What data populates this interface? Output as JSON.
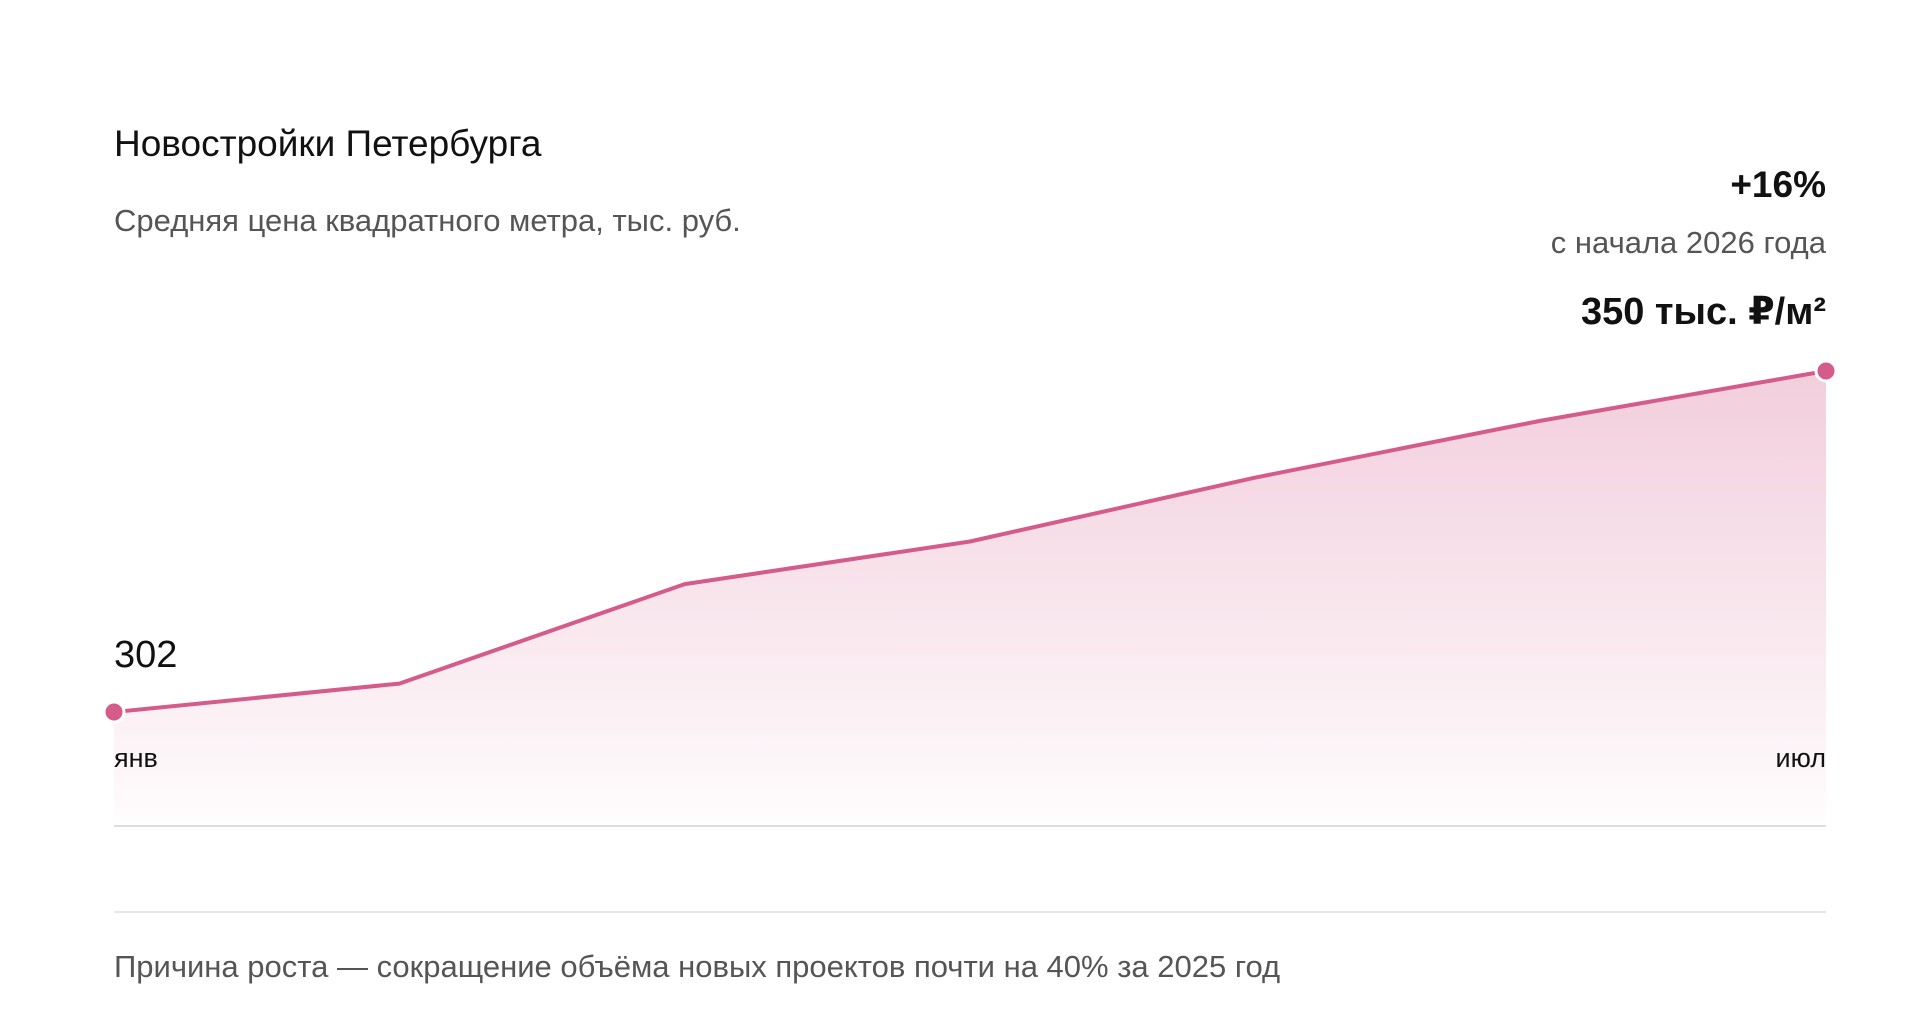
{
  "chart_data": {
    "type": "area",
    "title": "Новостройки Петербурга",
    "subtitle": "Средняя цена квадратного метра, тыс. руб.",
    "change": "+16%",
    "change_label": "с начала 2026 года",
    "categories": [
      "янв",
      null,
      null,
      null,
      null,
      null,
      "июл"
    ],
    "values": [
      302,
      306,
      320,
      326,
      335,
      343,
      350
    ],
    "value_labels": [
      "302",
      null,
      null,
      null,
      null,
      null,
      "350 тыс. ₽/м²"
    ],
    "color": "#d45b8a",
    "note": "Причина роста — сокращение объёма новых проектов почти на 40% за 2025 год"
  }
}
